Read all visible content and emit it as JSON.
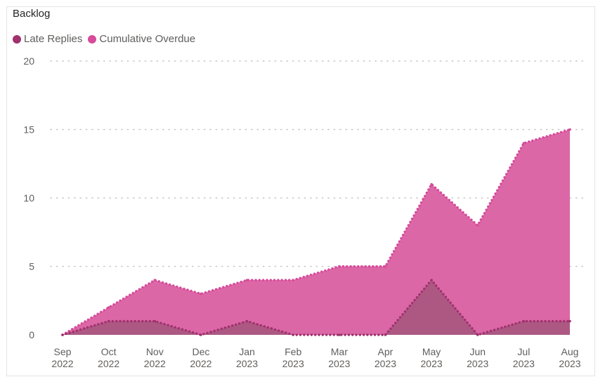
{
  "chart_data": {
    "type": "area",
    "title": "Backlog",
    "x": [
      "Sep 2022",
      "Oct 2022",
      "Nov 2022",
      "Dec 2022",
      "Jan 2023",
      "Feb 2023",
      "Mar 2023",
      "Apr 2023",
      "May 2023",
      "Jun 2023",
      "Jul 2023",
      "Aug 2023"
    ],
    "x_ticks": [
      {
        "month": "Sep",
        "year": "2022"
      },
      {
        "month": "Oct",
        "year": "2022"
      },
      {
        "month": "Nov",
        "year": "2022"
      },
      {
        "month": "Dec",
        "year": "2022"
      },
      {
        "month": "Jan",
        "year": "2023"
      },
      {
        "month": "Feb",
        "year": "2023"
      },
      {
        "month": "Mar",
        "year": "2023"
      },
      {
        "month": "Apr",
        "year": "2023"
      },
      {
        "month": "May",
        "year": "2023"
      },
      {
        "month": "Jun",
        "year": "2023"
      },
      {
        "month": "Jul",
        "year": "2023"
      },
      {
        "month": "Aug",
        "year": "2023"
      }
    ],
    "y_ticks": [
      "0",
      "5",
      "10",
      "15",
      "20"
    ],
    "ylim": [
      0,
      20
    ],
    "grid": true,
    "legend_position": "top-left",
    "series": [
      {
        "name": "Late Replies",
        "color": "#a0326e",
        "fill": "#a6577f",
        "values": [
          0,
          1,
          1,
          0,
          1,
          0,
          0,
          0,
          4,
          0,
          1,
          1
        ]
      },
      {
        "name": "Cumulative Overdue",
        "color": "#d64b9a",
        "fill": "#dc67a6",
        "values": [
          0,
          2,
          4,
          3,
          4,
          4,
          5,
          5,
          11,
          8,
          14,
          15
        ]
      }
    ]
  }
}
